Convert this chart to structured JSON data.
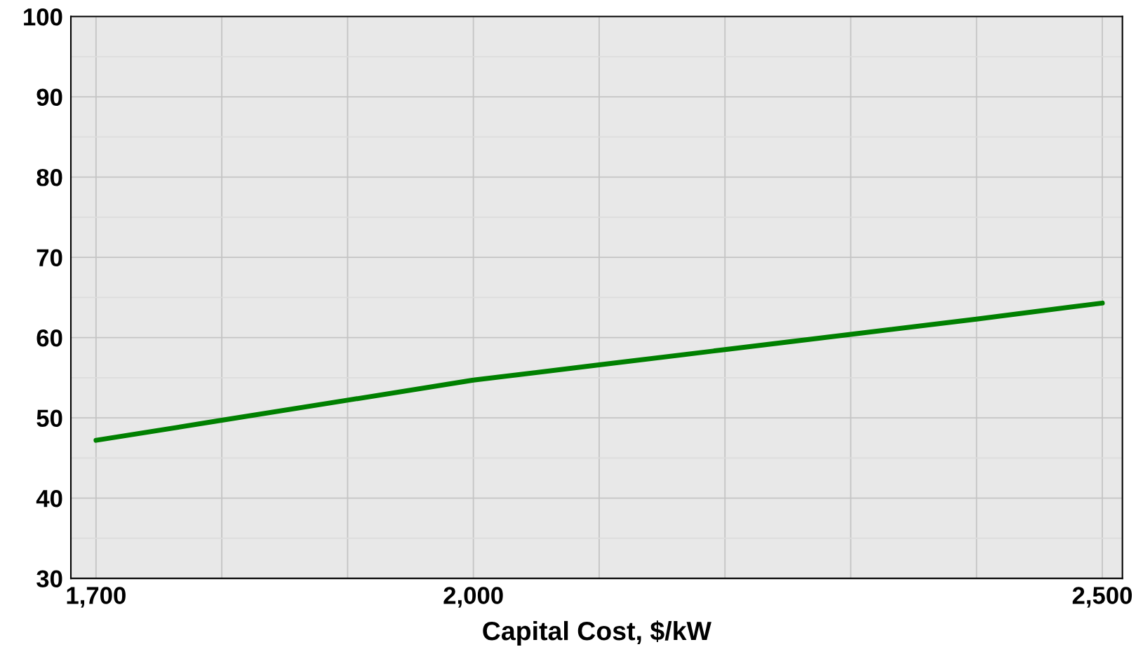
{
  "chart_data": {
    "type": "line",
    "xlabel": "Capital Cost, $/kW",
    "x": [
      1700,
      1800,
      1900,
      2000,
      2100,
      2200,
      2300,
      2400,
      2500
    ],
    "series": [
      {
        "color": "#008000",
        "values": [
          47.2,
          49.7,
          52.2,
          54.7,
          56.6,
          58.5,
          60.4,
          62.3,
          64.3
        ]
      }
    ],
    "xlim": [
      1680,
      2516
    ],
    "ylim": [
      30,
      100
    ],
    "xticks": [
      {
        "value": 1700,
        "label": "1,700"
      },
      {
        "value": 1800,
        "label": null
      },
      {
        "value": 1900,
        "label": null
      },
      {
        "value": 2000,
        "label": "2,000"
      },
      {
        "value": 2100,
        "label": null
      },
      {
        "value": 2200,
        "label": null
      },
      {
        "value": 2300,
        "label": null
      },
      {
        "value": 2400,
        "label": null
      },
      {
        "value": 2500,
        "label": "2,500"
      }
    ],
    "yticks": [
      30,
      {
        "value": 35,
        "label": null
      },
      40,
      {
        "value": 45,
        "label": null
      },
      50,
      {
        "value": 55,
        "label": null
      },
      60,
      {
        "value": 65,
        "label": null
      },
      70,
      {
        "value": 75,
        "label": null
      },
      80,
      {
        "value": 85,
        "label": null
      },
      90,
      {
        "value": 95,
        "label": null
      },
      100
    ],
    "grid": true,
    "marker": "none",
    "line_style": "solid"
  }
}
